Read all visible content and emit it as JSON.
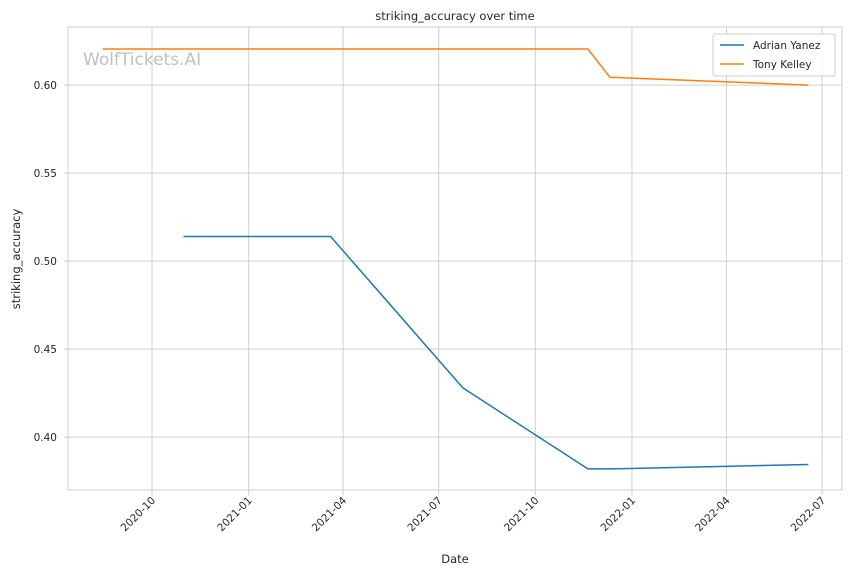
{
  "chart_data": {
    "type": "line",
    "title": "striking_accuracy over time",
    "xlabel": "Date",
    "ylabel": "striking_accuracy",
    "watermark": "WolfTickets.AI",
    "grid": true,
    "legend_position": "top-right",
    "xlim": [
      "2020-07-13",
      "2022-07-20"
    ],
    "ylim": [
      0.37,
      0.633
    ],
    "x_ticks": [
      "2020-10",
      "2021-01",
      "2021-04",
      "2021-07",
      "2021-10",
      "2022-01",
      "2022-04",
      "2022-07"
    ],
    "y_ticks": [
      "0.40",
      "0.45",
      "0.50",
      "0.55",
      "0.60"
    ],
    "series": [
      {
        "name": "Adrian Yanez",
        "color": "#1f77b4",
        "points": [
          {
            "x": "2020-10-31",
            "y": 0.514
          },
          {
            "x": "2021-03-20",
            "y": 0.514
          },
          {
            "x": "2021-07-24",
            "y": 0.428
          },
          {
            "x": "2021-11-20",
            "y": 0.382
          },
          {
            "x": "2021-12-11",
            "y": 0.382
          },
          {
            "x": "2022-06-18",
            "y": 0.3845
          }
        ]
      },
      {
        "name": "Tony Kelley",
        "color": "#ff7f0e",
        "points": [
          {
            "x": "2020-08-15",
            "y": 0.6205
          },
          {
            "x": "2021-11-20",
            "y": 0.6205
          },
          {
            "x": "2021-12-11",
            "y": 0.6045
          },
          {
            "x": "2022-06-18",
            "y": 0.6
          }
        ]
      }
    ]
  }
}
